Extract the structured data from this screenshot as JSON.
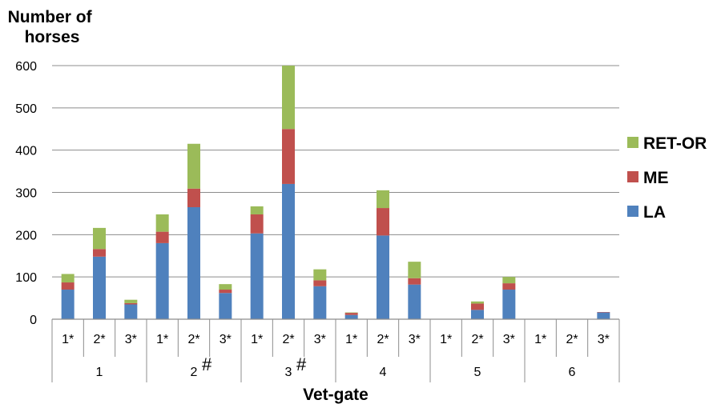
{
  "chart_data": {
    "type": "bar",
    "stacked": true,
    "ylabel": "Number of horses",
    "xlabel": "Vet-gate",
    "ylim": [
      0,
      600
    ],
    "yticks": [
      0,
      100,
      200,
      300,
      400,
      500,
      600
    ],
    "grid": true,
    "legend_position": "right",
    "groups": [
      {
        "label": "1",
        "mark": "",
        "categories": [
          "1*",
          "2*",
          "3*"
        ]
      },
      {
        "label": "2",
        "mark": "#",
        "categories": [
          "1*",
          "2*",
          "3*"
        ]
      },
      {
        "label": "3",
        "mark": "#",
        "categories": [
          "1*",
          "2*",
          "3*"
        ]
      },
      {
        "label": "4",
        "mark": "",
        "categories": [
          "1*",
          "2*",
          "3*"
        ]
      },
      {
        "label": "5",
        "mark": "",
        "categories": [
          "1*",
          "2*",
          "3*"
        ]
      },
      {
        "label": "6",
        "mark": "",
        "categories": [
          "1*",
          "2*",
          "3*"
        ]
      }
    ],
    "series": [
      {
        "name": "LA",
        "color": "#4F81BD",
        "values": [
          70,
          148,
          35,
          180,
          265,
          62,
          203,
          320,
          78,
          10,
          198,
          82,
          0,
          22,
          70,
          0,
          0,
          16
        ]
      },
      {
        "name": "ME",
        "color": "#C0504D",
        "values": [
          17,
          18,
          3,
          27,
          44,
          8,
          45,
          130,
          14,
          5,
          65,
          15,
          0,
          15,
          15,
          0,
          0,
          1
        ]
      },
      {
        "name": "RET-OR",
        "color": "#9BBB59",
        "values": [
          20,
          50,
          8,
          41,
          106,
          13,
          19,
          150,
          26,
          1,
          42,
          39,
          0,
          5,
          15,
          0,
          0,
          0
        ]
      }
    ],
    "legend_order": [
      "RET-OR",
      "ME",
      "LA"
    ]
  }
}
